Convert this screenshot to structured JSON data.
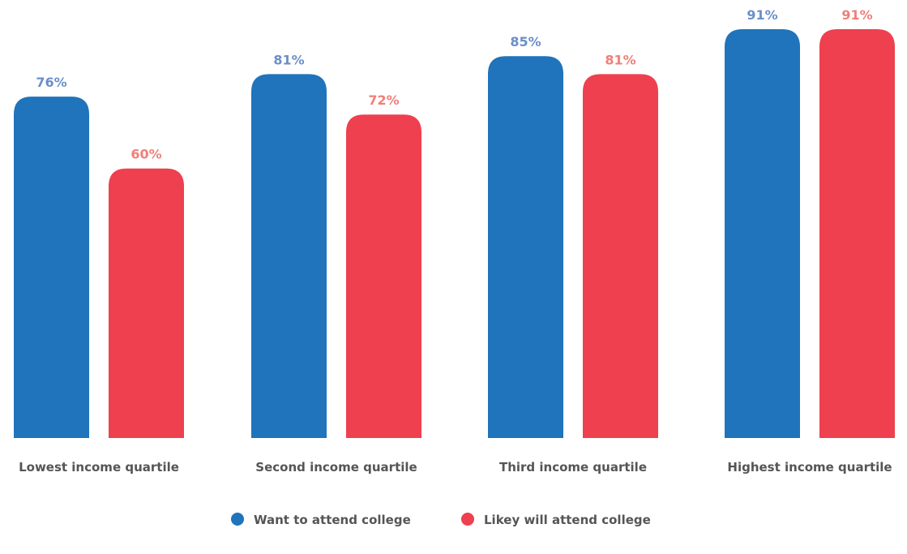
{
  "chart_data": {
    "type": "bar",
    "title": "",
    "xlabel": "",
    "ylabel": "",
    "ylim": [
      0,
      100
    ],
    "grid": false,
    "legend_position": "bottom-center",
    "categories": [
      "Lowest income quartile",
      "Second income quartile",
      "Third income quartile",
      "Highest income quartile"
    ],
    "series": [
      {
        "name": "Want to attend college",
        "values": [
          76,
          81,
          85,
          91
        ],
        "labels": [
          "76%",
          "81%",
          "85%",
          "91%"
        ],
        "color": "#1f74bb",
        "label_color": "#6b8fc9"
      },
      {
        "name": "Likey will attend college",
        "values": [
          60,
          72,
          81,
          91
        ],
        "labels": [
          "60%",
          "72%",
          "81%",
          "91%"
        ],
        "color": "#ee404f",
        "label_color": "#f07f7a"
      }
    ]
  }
}
